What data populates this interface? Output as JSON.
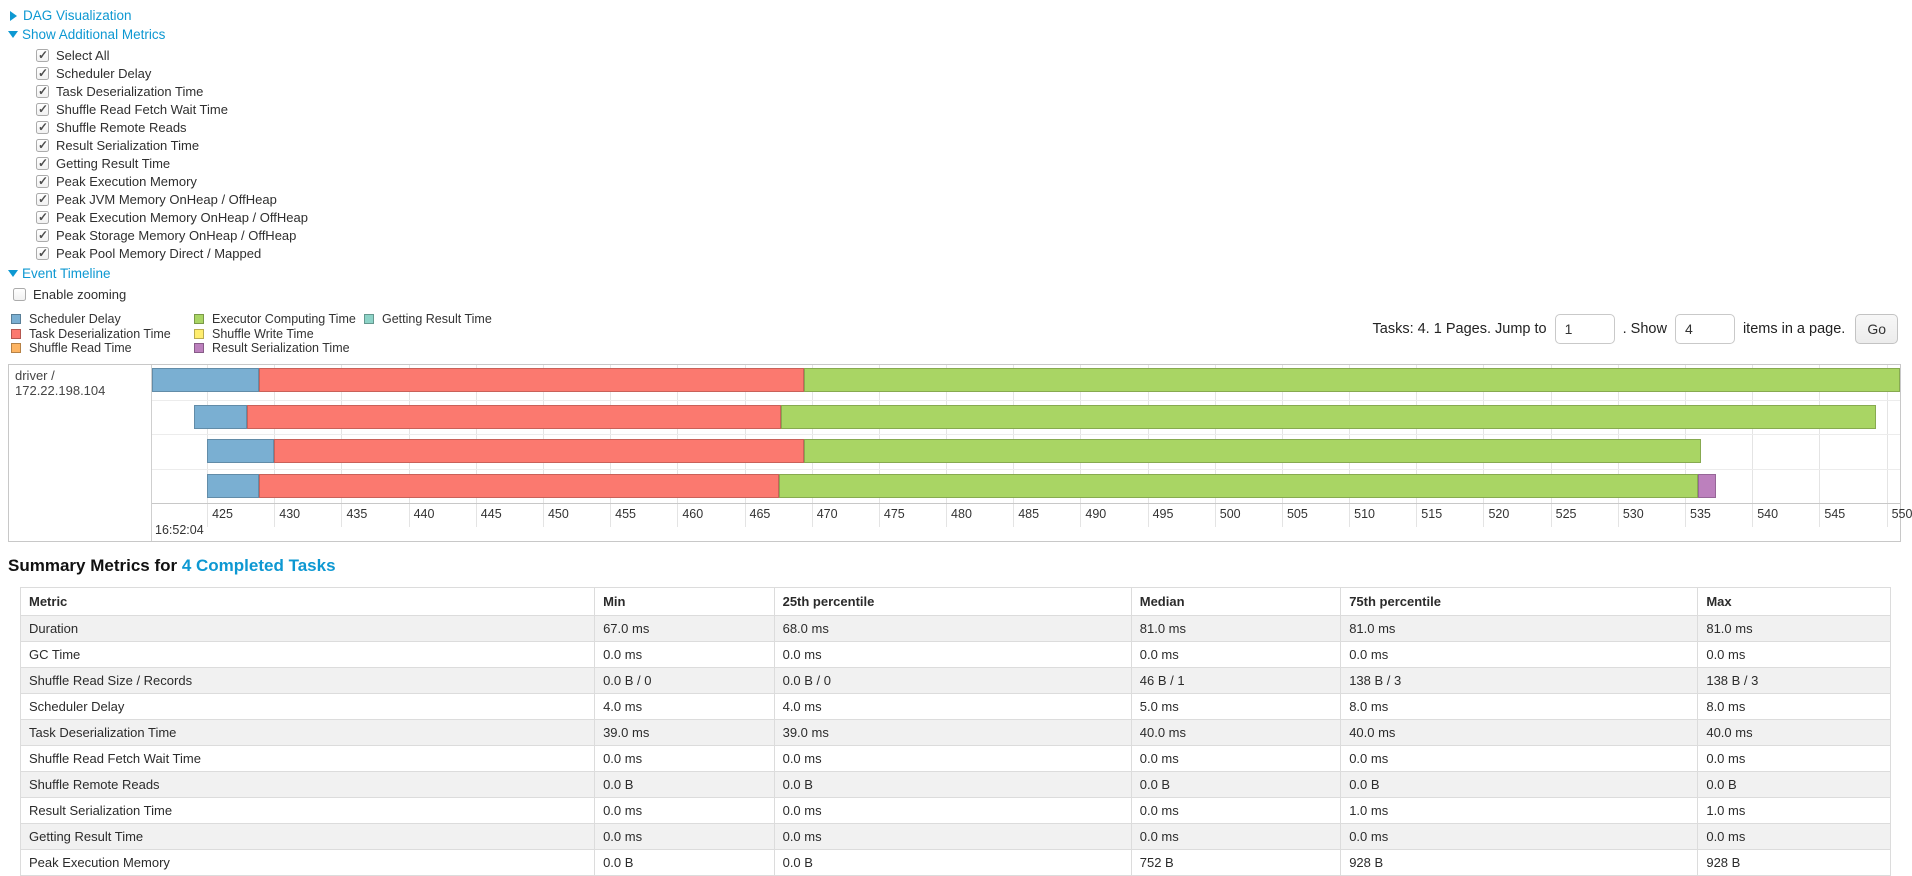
{
  "controls": {
    "dag": {
      "label": "DAG Visualization"
    },
    "metrics": {
      "label": "Show Additional Metrics",
      "items": [
        {
          "label": "Select All",
          "checked": true
        },
        {
          "label": "Scheduler Delay",
          "checked": true
        },
        {
          "label": "Task Deserialization Time",
          "checked": true
        },
        {
          "label": "Shuffle Read Fetch Wait Time",
          "checked": true
        },
        {
          "label": "Shuffle Remote Reads",
          "checked": true
        },
        {
          "label": "Result Serialization Time",
          "checked": true
        },
        {
          "label": "Getting Result Time",
          "checked": true
        },
        {
          "label": "Peak Execution Memory",
          "checked": true
        },
        {
          "label": "Peak JVM Memory OnHeap / OffHeap",
          "checked": true
        },
        {
          "label": "Peak Execution Memory OnHeap / OffHeap",
          "checked": true
        },
        {
          "label": "Peak Storage Memory OnHeap / OffHeap",
          "checked": true
        },
        {
          "label": "Peak Pool Memory Direct / Mapped",
          "checked": true
        }
      ]
    },
    "event_timeline": {
      "label": "Event Timeline"
    },
    "enable_zooming": {
      "label": "Enable zooming",
      "checked": false
    }
  },
  "legend_layout": {
    "columns": [
      [
        0,
        1,
        2
      ],
      [
        3,
        4,
        5
      ],
      [
        6
      ]
    ]
  },
  "pagination": {
    "tasks_text": "Tasks: 4. 1 Pages. Jump to",
    "jump_value": "1",
    "show_text": ". Show",
    "show_value": "4",
    "items_text": "items in a page.",
    "go_label": "Go"
  },
  "chart_data": {
    "type": "timeline",
    "group_label": "driver / 172.22.198.104",
    "x_unit": "ms",
    "x_domain": [
      420.9,
      551.0
    ],
    "x_ticks": [
      425,
      430,
      435,
      440,
      445,
      450,
      455,
      460,
      465,
      470,
      475,
      480,
      485,
      490,
      495,
      500,
      505,
      510,
      515,
      520,
      525,
      530,
      535,
      540,
      545,
      550
    ],
    "x_major_label": "16:52:04",
    "legend": [
      {
        "name": "Scheduler Delay",
        "color": "#7AAFD2"
      },
      {
        "name": "Task Deserialization Time",
        "color": "#FB796F"
      },
      {
        "name": "Shuffle Read Time",
        "color": "#FDB462"
      },
      {
        "name": "Executor Computing Time",
        "color": "#A9D564"
      },
      {
        "name": "Shuffle Write Time",
        "color": "#FFED6F"
      },
      {
        "name": "Result Serialization Time",
        "color": "#BC80BD"
      },
      {
        "name": "Getting Result Time",
        "color": "#8DD3C7"
      }
    ],
    "tasks": [
      {
        "segments": [
          {
            "metric": "Scheduler Delay",
            "start": 420.9,
            "end": 428.9
          },
          {
            "metric": "Task Deserialization Time",
            "start": 428.9,
            "end": 469.4
          },
          {
            "metric": "Executor Computing Time",
            "start": 469.4,
            "end": 551.0
          }
        ]
      },
      {
        "segments": [
          {
            "metric": "Scheduler Delay",
            "start": 424.0,
            "end": 428.0
          },
          {
            "metric": "Task Deserialization Time",
            "start": 428.0,
            "end": 467.7
          },
          {
            "metric": "Executor Computing Time",
            "start": 467.7,
            "end": 549.2
          }
        ]
      },
      {
        "segments": [
          {
            "metric": "Scheduler Delay",
            "start": 425.0,
            "end": 430.0
          },
          {
            "metric": "Task Deserialization Time",
            "start": 430.0,
            "end": 469.4
          },
          {
            "metric": "Executor Computing Time",
            "start": 469.4,
            "end": 536.2
          }
        ]
      },
      {
        "segments": [
          {
            "metric": "Scheduler Delay",
            "start": 425.0,
            "end": 428.9
          },
          {
            "metric": "Task Deserialization Time",
            "start": 428.9,
            "end": 467.6
          },
          {
            "metric": "Executor Computing Time",
            "start": 467.6,
            "end": 536.0
          },
          {
            "metric": "Result Serialization Time",
            "start": 536.0,
            "end": 537.3
          }
        ]
      }
    ]
  },
  "summary": {
    "title_prefix": "Summary Metrics for",
    "title_link": "4 Completed Tasks",
    "columns": [
      "Metric",
      "Min",
      "25th percentile",
      "Median",
      "75th percentile",
      "Max"
    ],
    "rows": [
      {
        "metric": "Duration",
        "values": [
          "67.0 ms",
          "68.0 ms",
          "81.0 ms",
          "81.0 ms",
          "81.0 ms"
        ]
      },
      {
        "metric": "GC Time",
        "values": [
          "0.0 ms",
          "0.0 ms",
          "0.0 ms",
          "0.0 ms",
          "0.0 ms"
        ]
      },
      {
        "metric": "Shuffle Read Size / Records",
        "values": [
          "0.0 B / 0",
          "0.0 B / 0",
          "46 B / 1",
          "138 B / 3",
          "138 B / 3"
        ]
      },
      {
        "metric": "Scheduler Delay",
        "values": [
          "4.0 ms",
          "4.0 ms",
          "5.0 ms",
          "8.0 ms",
          "8.0 ms"
        ]
      },
      {
        "metric": "Task Deserialization Time",
        "values": [
          "39.0 ms",
          "39.0 ms",
          "40.0 ms",
          "40.0 ms",
          "40.0 ms"
        ]
      },
      {
        "metric": "Shuffle Read Fetch Wait Time",
        "values": [
          "0.0 ms",
          "0.0 ms",
          "0.0 ms",
          "0.0 ms",
          "0.0 ms"
        ]
      },
      {
        "metric": "Shuffle Remote Reads",
        "values": [
          "0.0 B",
          "0.0 B",
          "0.0 B",
          "0.0 B",
          "0.0 B"
        ]
      },
      {
        "metric": "Result Serialization Time",
        "values": [
          "0.0 ms",
          "0.0 ms",
          "0.0 ms",
          "1.0 ms",
          "1.0 ms"
        ]
      },
      {
        "metric": "Getting Result Time",
        "values": [
          "0.0 ms",
          "0.0 ms",
          "0.0 ms",
          "0.0 ms",
          "0.0 ms"
        ]
      },
      {
        "metric": "Peak Execution Memory",
        "values": [
          "0.0 B",
          "0.0 B",
          "752 B",
          "928 B",
          "928 B"
        ]
      }
    ]
  },
  "colors": {
    "link": "#0D98D2",
    "grid": "#e4e4e4",
    "border": "#c8c8c8",
    "stripe": "#f1f1f1"
  }
}
